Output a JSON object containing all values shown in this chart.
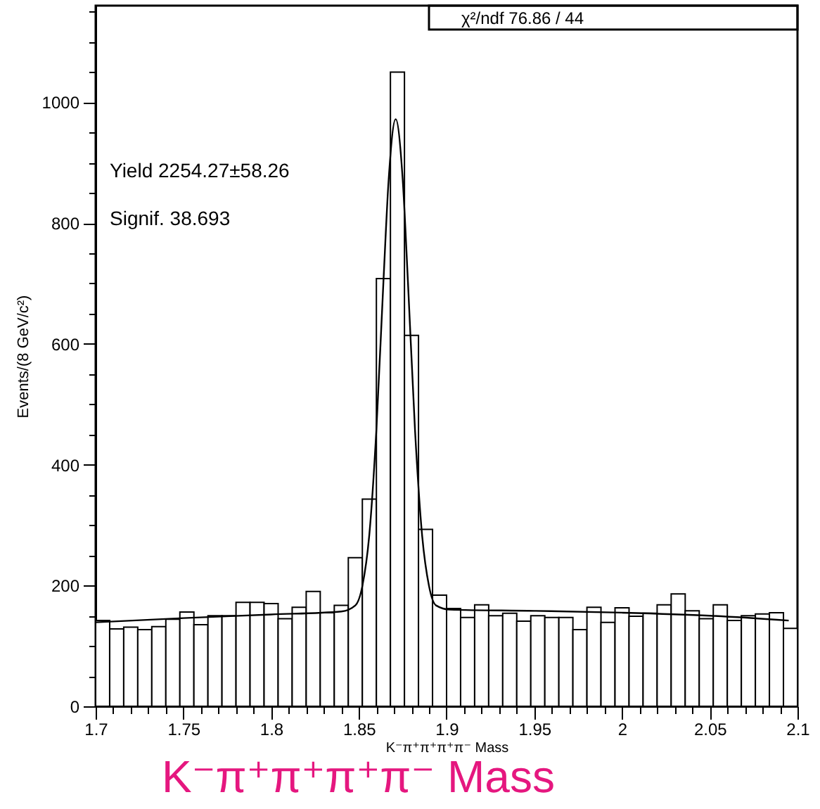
{
  "chart_data": {
    "type": "histogram",
    "xlabel": "K⁻π⁺π⁺π⁺π⁻ Mass",
    "ylabel": "Events/(8 GeV/c²)",
    "annotations": [
      "χ²/ndf 76.86   /   44",
      "Yield   2254.27±58.26",
      "Signif.            38.693",
      "K⁻π⁺π⁺π⁺π⁻ Mass"
    ],
    "bins": [
      1.7,
      1.708,
      1.716,
      1.724,
      1.732,
      1.74,
      1.748,
      1.756,
      1.764,
      1.772,
      1.78,
      1.788,
      1.796,
      1.804,
      1.812,
      1.82,
      1.828,
      1.836,
      1.844,
      1.852,
      1.86,
      1.868,
      1.876,
      1.884,
      1.892,
      1.9,
      1.908,
      1.916,
      1.924,
      1.932,
      1.94,
      1.948,
      1.956,
      1.964,
      1.972,
      1.98,
      1.988,
      1.996,
      2.004,
      2.012,
      2.02,
      2.028,
      2.036,
      2.044,
      2.052,
      2.06,
      2.068,
      2.076,
      2.084,
      2.092,
      2.1
    ],
    "series": [
      {
        "type": "histogram",
        "color": "#000000",
        "values": [
          142,
          128,
          131,
          127,
          132,
          144,
          156,
          135,
          150,
          150,
          172,
          172,
          170,
          145,
          164,
          190,
          155,
          167,
          246,
          343,
          708,
          1050,
          614,
          293,
          184,
          162,
          147,
          168,
          150,
          154,
          141,
          150,
          147,
          147,
          127,
          164,
          139,
          163,
          149,
          154,
          168,
          186,
          158,
          145,
          168,
          142,
          150,
          153,
          155,
          129
        ]
      },
      {
        "type": "line",
        "color": "#000000",
        "x": [
          1.7,
          1.75,
          1.8,
          1.84,
          1.848,
          1.852,
          1.856,
          1.86,
          1.864,
          1.867,
          1.871,
          1.875,
          1.878,
          1.882,
          1.886,
          1.89,
          1.894,
          1.902,
          1.95,
          2,
          2.05,
          2.095
        ],
        "values": [
          139,
          146,
          152,
          157,
          167,
          199,
          285,
          458,
          702,
          872,
          972,
          872,
          702,
          458,
          285,
          199,
          167,
          160,
          158,
          155,
          150,
          142
        ]
      }
    ],
    "xlim": [
      1.7,
      2.1
    ],
    "ylim": [
      0,
      1160
    ],
    "xticks": [
      1.7,
      {
        "value": 1.71,
        "label": null
      },
      {
        "value": 1.72,
        "label": null
      },
      {
        "value": 1.73,
        "label": null
      },
      {
        "value": 1.74,
        "label": null
      },
      1.75,
      {
        "value": 1.76,
        "label": null
      },
      {
        "value": 1.77,
        "label": null
      },
      {
        "value": 1.78,
        "label": null
      },
      {
        "value": 1.79,
        "label": null
      },
      1.8,
      {
        "value": 1.81,
        "label": null
      },
      {
        "value": 1.82,
        "label": null
      },
      {
        "value": 1.83,
        "label": null
      },
      {
        "value": 1.84,
        "label": null
      },
      1.85,
      {
        "value": 1.86,
        "label": null
      },
      {
        "value": 1.87,
        "label": null
      },
      {
        "value": 1.88,
        "label": null
      },
      {
        "value": 1.89,
        "label": null
      },
      1.9,
      {
        "value": 1.91,
        "label": null
      },
      {
        "value": 1.92,
        "label": null
      },
      {
        "value": 1.93,
        "label": null
      },
      {
        "value": 1.94,
        "label": null
      },
      1.95,
      {
        "value": 1.96,
        "label": null
      },
      {
        "value": 1.97,
        "label": null
      },
      {
        "value": 1.98,
        "label": null
      },
      {
        "value": 1.99,
        "label": null
      },
      2,
      {
        "value": 2.01,
        "label": null
      },
      {
        "value": 2.02,
        "label": null
      },
      {
        "value": 2.03,
        "label": null
      },
      {
        "value": 2.04,
        "label": null
      },
      2.05,
      {
        "value": 2.06,
        "label": null
      },
      {
        "value": 2.07,
        "label": null
      },
      {
        "value": 2.08,
        "label": null
      },
      {
        "value": 2.09,
        "label": null
      },
      2.1
    ],
    "yticks": [
      0,
      {
        "value": 50,
        "label": null
      },
      {
        "value": 100,
        "label": null
      },
      {
        "value": 150,
        "label": null
      },
      200,
      {
        "value": 250,
        "label": null
      },
      {
        "value": 300,
        "label": null
      },
      {
        "value": 350,
        "label": null
      },
      400,
      {
        "value": 450,
        "label": null
      },
      {
        "value": 500,
        "label": null
      },
      {
        "value": 550,
        "label": null
      },
      600,
      {
        "value": 650,
        "label": null
      },
      {
        "value": 700,
        "label": null
      },
      {
        "value": 750,
        "label": null
      },
      800,
      {
        "value": 850,
        "label": null
      },
      {
        "value": 900,
        "label": null
      },
      {
        "value": 950,
        "label": null
      },
      1000,
      {
        "value": 1050,
        "label": null
      },
      {
        "value": 1100,
        "label": null
      },
      {
        "value": 1150,
        "label": null
      }
    ],
    "grid": false
  }
}
